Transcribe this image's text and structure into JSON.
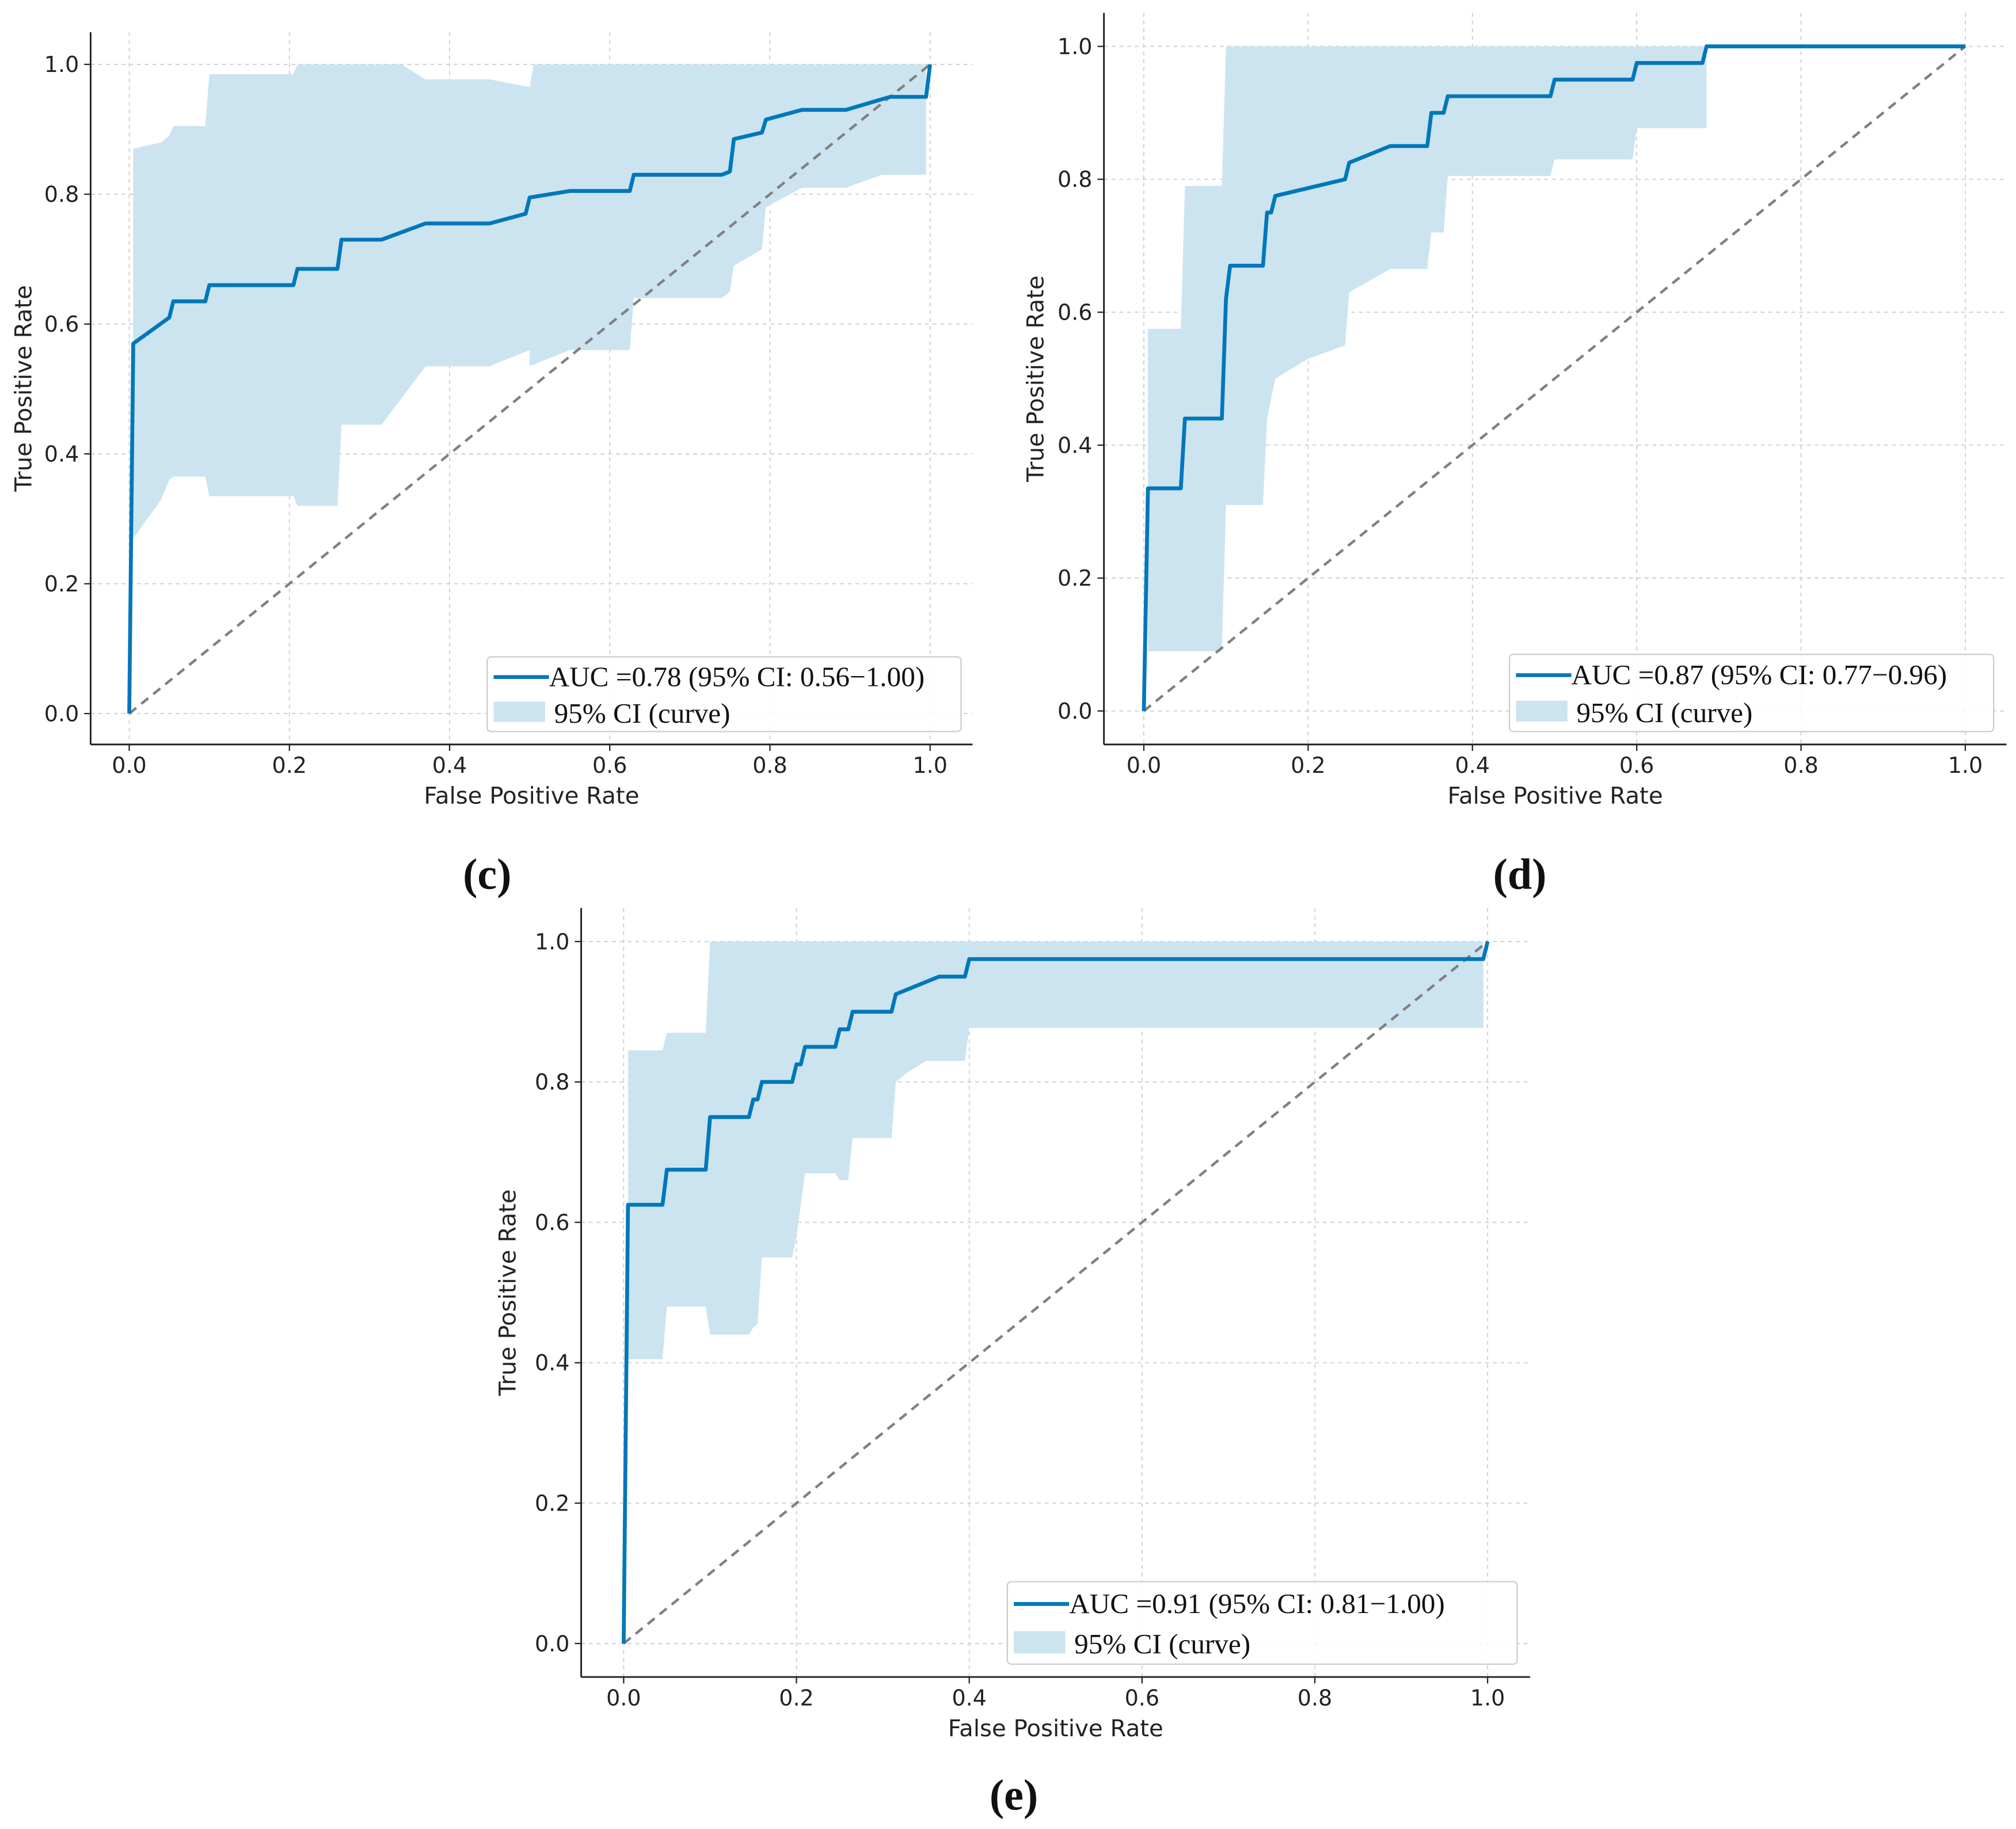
{
  "colors": {
    "curve": "#0077bb",
    "ci": "#cce4f0",
    "diag": "#808080",
    "grid": "#cccccc"
  },
  "chart_data": [
    {
      "type": "line",
      "panel": "(c)",
      "xlabel": "False Positive Rate",
      "ylabel": "True Positive Rate",
      "xlim": [
        0,
        1
      ],
      "ylim": [
        0,
        1
      ],
      "grid": true,
      "legend_position": "lower-right",
      "xticks": [
        "0.0",
        "0.2",
        "0.4",
        "0.6",
        "0.8",
        "1.0"
      ],
      "yticks": [
        "0.0",
        "0.2",
        "0.4",
        "0.6",
        "0.8",
        "1.0"
      ],
      "legend": [
        "AUC =0.78 (95% CI: 0.56−1.00)",
        "95% CI (curve)"
      ],
      "roc": [
        [
          0,
          0
        ],
        [
          0.005,
          0.57
        ],
        [
          0.05,
          0.61
        ],
        [
          0.055,
          0.635
        ],
        [
          0.095,
          0.635
        ],
        [
          0.1,
          0.66
        ],
        [
          0.205,
          0.66
        ],
        [
          0.21,
          0.685
        ],
        [
          0.26,
          0.685
        ],
        [
          0.265,
          0.73
        ],
        [
          0.315,
          0.73
        ],
        [
          0.37,
          0.755
        ],
        [
          0.45,
          0.755
        ],
        [
          0.495,
          0.77
        ],
        [
          0.5,
          0.795
        ],
        [
          0.55,
          0.805
        ],
        [
          0.625,
          0.805
        ],
        [
          0.63,
          0.83
        ],
        [
          0.74,
          0.83
        ],
        [
          0.75,
          0.835
        ],
        [
          0.755,
          0.885
        ],
        [
          0.79,
          0.895
        ],
        [
          0.795,
          0.915
        ],
        [
          0.84,
          0.93
        ],
        [
          0.895,
          0.93
        ],
        [
          0.95,
          0.95
        ],
        [
          0.995,
          0.95
        ],
        [
          1,
          1
        ]
      ],
      "ci_upper": [
        [
          0.005,
          0.87
        ],
        [
          0.04,
          0.88
        ],
        [
          0.05,
          0.89
        ],
        [
          0.055,
          0.905
        ],
        [
          0.095,
          0.905
        ],
        [
          0.1,
          0.985
        ],
        [
          0.205,
          0.985
        ],
        [
          0.21,
          1.0
        ],
        [
          0.34,
          1.0
        ],
        [
          0.37,
          0.977
        ],
        [
          0.45,
          0.977
        ],
        [
          0.5,
          0.965
        ],
        [
          0.505,
          1.0
        ],
        [
          0.995,
          1.0
        ]
      ],
      "ci_lower": [
        [
          0.005,
          0.27
        ],
        [
          0.04,
          0.33
        ],
        [
          0.05,
          0.36
        ],
        [
          0.055,
          0.365
        ],
        [
          0.095,
          0.365
        ],
        [
          0.1,
          0.335
        ],
        [
          0.205,
          0.335
        ],
        [
          0.21,
          0.32
        ],
        [
          0.26,
          0.32
        ],
        [
          0.265,
          0.445
        ],
        [
          0.315,
          0.445
        ],
        [
          0.37,
          0.535
        ],
        [
          0.45,
          0.535
        ],
        [
          0.5,
          0.56
        ],
        [
          0.5,
          0.535
        ],
        [
          0.55,
          0.56
        ],
        [
          0.625,
          0.56
        ],
        [
          0.63,
          0.64
        ],
        [
          0.74,
          0.64
        ],
        [
          0.75,
          0.65
        ],
        [
          0.755,
          0.69
        ],
        [
          0.79,
          0.715
        ],
        [
          0.795,
          0.78
        ],
        [
          0.84,
          0.81
        ],
        [
          0.895,
          0.81
        ],
        [
          0.94,
          0.83
        ],
        [
          0.995,
          0.83
        ]
      ]
    },
    {
      "type": "line",
      "panel": "(d)",
      "xlabel": "False Positive Rate",
      "ylabel": "True Positive Rate",
      "xlim": [
        0,
        1
      ],
      "ylim": [
        0,
        1
      ],
      "grid": true,
      "legend_position": "lower-right",
      "xticks": [
        "0.0",
        "0.2",
        "0.4",
        "0.6",
        "0.8",
        "1.0"
      ],
      "yticks": [
        "0.0",
        "0.2",
        "0.4",
        "0.6",
        "0.8",
        "1.0"
      ],
      "legend": [
        "AUC =0.87 (95% CI: 0.77−0.96)",
        "95% CI (curve)"
      ],
      "roc": [
        [
          0,
          0
        ],
        [
          0.005,
          0.335
        ],
        [
          0.045,
          0.335
        ],
        [
          0.05,
          0.44
        ],
        [
          0.095,
          0.44
        ],
        [
          0.1,
          0.62
        ],
        [
          0.105,
          0.67
        ],
        [
          0.145,
          0.67
        ],
        [
          0.15,
          0.75
        ],
        [
          0.155,
          0.75
        ],
        [
          0.16,
          0.775
        ],
        [
          0.245,
          0.8
        ],
        [
          0.25,
          0.825
        ],
        [
          0.3,
          0.85
        ],
        [
          0.345,
          0.85
        ],
        [
          0.35,
          0.9
        ],
        [
          0.365,
          0.9
        ],
        [
          0.37,
          0.925
        ],
        [
          0.495,
          0.925
        ],
        [
          0.5,
          0.95
        ],
        [
          0.595,
          0.95
        ],
        [
          0.6,
          0.975
        ],
        [
          0.68,
          0.975
        ],
        [
          0.685,
          1.0
        ],
        [
          1,
          1
        ]
      ],
      "ci_upper": [
        [
          0.005,
          0.575
        ],
        [
          0.045,
          0.575
        ],
        [
          0.05,
          0.79
        ],
        [
          0.095,
          0.79
        ],
        [
          0.1,
          1.0
        ],
        [
          0.685,
          1.0
        ]
      ],
      "ci_lower": [
        [
          0.005,
          0.09
        ],
        [
          0.095,
          0.09
        ],
        [
          0.1,
          0.31
        ],
        [
          0.145,
          0.31
        ],
        [
          0.15,
          0.44
        ],
        [
          0.16,
          0.5
        ],
        [
          0.2,
          0.53
        ],
        [
          0.245,
          0.55
        ],
        [
          0.25,
          0.63
        ],
        [
          0.3,
          0.665
        ],
        [
          0.345,
          0.665
        ],
        [
          0.35,
          0.72
        ],
        [
          0.365,
          0.72
        ],
        [
          0.37,
          0.805
        ],
        [
          0.495,
          0.805
        ],
        [
          0.5,
          0.83
        ],
        [
          0.595,
          0.83
        ],
        [
          0.6,
          0.877
        ],
        [
          0.685,
          0.877
        ]
      ]
    },
    {
      "type": "line",
      "panel": "(e)",
      "xlabel": "False Positive Rate",
      "ylabel": "True Positive Rate",
      "xlim": [
        0,
        1
      ],
      "ylim": [
        0,
        1
      ],
      "grid": true,
      "legend_position": "lower-right",
      "xticks": [
        "0.0",
        "0.2",
        "0.4",
        "0.6",
        "0.8",
        "1.0"
      ],
      "yticks": [
        "0.0",
        "0.2",
        "0.4",
        "0.6",
        "0.8",
        "1.0"
      ],
      "legend": [
        "AUC =0.91 (95% CI: 0.81−1.00)",
        "95% CI (curve)"
      ],
      "roc": [
        [
          0,
          0
        ],
        [
          0.005,
          0.625
        ],
        [
          0.045,
          0.625
        ],
        [
          0.05,
          0.675
        ],
        [
          0.095,
          0.675
        ],
        [
          0.1,
          0.75
        ],
        [
          0.145,
          0.75
        ],
        [
          0.15,
          0.775
        ],
        [
          0.155,
          0.775
        ],
        [
          0.16,
          0.8
        ],
        [
          0.195,
          0.8
        ],
        [
          0.2,
          0.825
        ],
        [
          0.205,
          0.825
        ],
        [
          0.21,
          0.85
        ],
        [
          0.245,
          0.85
        ],
        [
          0.25,
          0.875
        ],
        [
          0.26,
          0.875
        ],
        [
          0.265,
          0.9
        ],
        [
          0.31,
          0.9
        ],
        [
          0.315,
          0.925
        ],
        [
          0.365,
          0.95
        ],
        [
          0.395,
          0.95
        ],
        [
          0.4,
          0.975
        ],
        [
          0.995,
          0.975
        ],
        [
          1,
          1
        ]
      ],
      "ci_upper": [
        [
          0.005,
          0.845
        ],
        [
          0.045,
          0.845
        ],
        [
          0.05,
          0.87
        ],
        [
          0.095,
          0.87
        ],
        [
          0.1,
          1.0
        ],
        [
          0.995,
          1.0
        ]
      ],
      "ci_lower": [
        [
          0.005,
          0.405
        ],
        [
          0.045,
          0.405
        ],
        [
          0.05,
          0.48
        ],
        [
          0.095,
          0.48
        ],
        [
          0.1,
          0.44
        ],
        [
          0.145,
          0.44
        ],
        [
          0.15,
          0.45
        ],
        [
          0.155,
          0.455
        ],
        [
          0.16,
          0.55
        ],
        [
          0.195,
          0.55
        ],
        [
          0.2,
          0.58
        ],
        [
          0.21,
          0.67
        ],
        [
          0.245,
          0.67
        ],
        [
          0.25,
          0.66
        ],
        [
          0.26,
          0.66
        ],
        [
          0.265,
          0.72
        ],
        [
          0.31,
          0.72
        ],
        [
          0.315,
          0.8
        ],
        [
          0.33,
          0.815
        ],
        [
          0.35,
          0.83
        ],
        [
          0.395,
          0.83
        ],
        [
          0.4,
          0.877
        ],
        [
          0.995,
          0.877
        ]
      ]
    }
  ]
}
